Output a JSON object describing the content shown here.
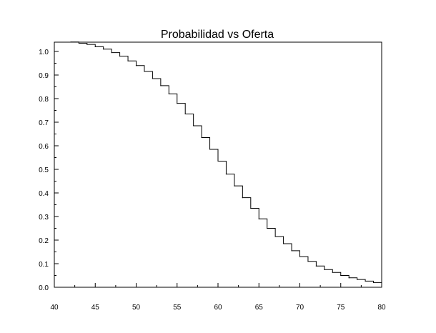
{
  "chart_data": {
    "type": "line",
    "step": true,
    "title": "Probabilidad vs Oferta",
    "xlabel": "",
    "ylabel": "",
    "xlim": [
      40,
      80
    ],
    "ylim": [
      0.0,
      1.0
    ],
    "grid": false,
    "x_ticks": [
      40,
      45,
      50,
      55,
      60,
      65,
      70,
      75,
      80
    ],
    "x_tick_labels": [
      "40",
      "45",
      "50",
      "55",
      "60",
      "65",
      "70",
      "75",
      "80"
    ],
    "y_ticks": [
      0.0,
      0.1,
      0.2,
      0.3,
      0.4,
      0.5,
      0.6,
      0.7,
      0.8,
      0.9,
      1.0
    ],
    "y_tick_labels": [
      "0.0",
      "0.1",
      "0.2",
      "0.3",
      "0.4",
      "0.5",
      "0.6",
      "0.7",
      "0.8",
      "0.9",
      "1.0"
    ],
    "colors": {
      "line": "#000000",
      "axes": "#000000",
      "background": "#ffffff"
    },
    "series": [
      {
        "x": [
          42,
          43,
          44,
          45,
          46,
          47,
          48,
          49,
          50,
          51,
          52,
          53,
          54,
          55,
          56,
          57,
          58,
          59,
          60,
          61,
          62,
          63,
          64,
          65,
          66,
          67,
          68,
          69,
          70,
          71,
          72,
          73,
          74,
          75,
          76,
          77,
          78,
          79,
          80
        ],
        "y": [
          1.04,
          1.035,
          1.03,
          1.02,
          1.01,
          0.995,
          0.98,
          0.96,
          0.94,
          0.915,
          0.885,
          0.855,
          0.82,
          0.78,
          0.735,
          0.685,
          0.635,
          0.585,
          0.535,
          0.48,
          0.43,
          0.38,
          0.335,
          0.29,
          0.25,
          0.215,
          0.185,
          0.155,
          0.13,
          0.11,
          0.09,
          0.075,
          0.063,
          0.05,
          0.04,
          0.033,
          0.026,
          0.02,
          0.015
        ]
      }
    ]
  }
}
